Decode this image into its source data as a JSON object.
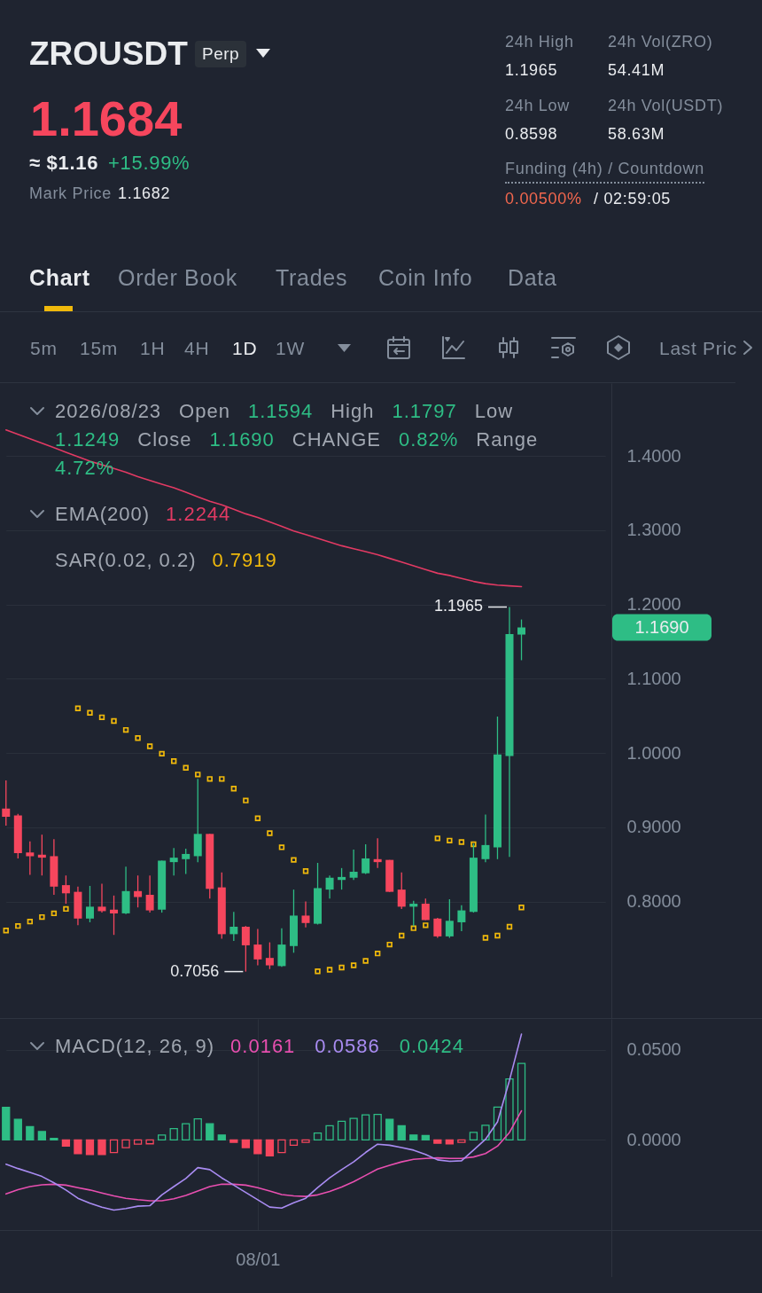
{
  "chart_data": [
    {
      "type": "other",
      "title": "ZROUSDT",
      "annotations": [
        "Perp",
        "1.1684",
        "≈ $1.16",
        "+15.99%",
        "Mark Price",
        "1.1682",
        "24h High",
        "1.1965",
        "24h Low",
        "0.8598",
        "24h Vol(ZRO)",
        "54.41M",
        "24h Vol(USDT)",
        "58.63M",
        "Funding (4h) / Countdown",
        "0.00500%",
        "/ 02:59:05",
        "Chart",
        "Order Book",
        "Trades",
        "Coin Info",
        "Data",
        "5m",
        "15m",
        "1H",
        "4H",
        "1D",
        "1W",
        "Last Pric"
      ]
    },
    {
      "type": "candlestick",
      "categories": [
        null,
        null,
        null,
        null,
        null,
        null,
        null,
        null,
        null,
        null,
        null,
        null,
        null,
        null,
        null,
        null,
        null,
        null,
        null,
        null,
        null,
        null,
        null,
        null,
        null,
        null,
        null,
        null,
        null,
        null,
        null,
        null,
        null,
        null,
        null,
        null,
        null,
        null,
        null,
        null,
        null,
        null,
        null,
        null,
        null,
        null,
        null,
        null,
        null,
        null,
        null
      ],
      "ohlc": [
        [
          0.925,
          0.963,
          0.902,
          0.914
        ],
        [
          0.916,
          0.918,
          0.858,
          0.865
        ],
        [
          0.866,
          0.881,
          0.836,
          0.861
        ],
        [
          0.863,
          0.89,
          0.835,
          0.859
        ],
        [
          0.861,
          0.884,
          0.809,
          0.82
        ],
        [
          0.822,
          0.835,
          0.797,
          0.811
        ],
        [
          0.813,
          0.82,
          0.768,
          0.777
        ],
        [
          0.777,
          0.821,
          0.772,
          0.793
        ],
        [
          0.793,
          0.824,
          0.785,
          0.787
        ],
        [
          0.789,
          0.808,
          0.755,
          0.784
        ],
        [
          0.784,
          0.847,
          0.783,
          0.814
        ],
        [
          0.814,
          0.835,
          0.792,
          0.806
        ],
        [
          0.809,
          0.835,
          0.785,
          0.788
        ],
        [
          0.789,
          0.855,
          0.785,
          0.855
        ],
        [
          0.853,
          0.872,
          0.835,
          0.859
        ],
        [
          0.857,
          0.871,
          0.837,
          0.864
        ],
        [
          0.861,
          0.965,
          0.853,
          0.891
        ],
        [
          0.891,
          0.891,
          0.804,
          0.817
        ],
        [
          0.819,
          0.839,
          0.75,
          0.756
        ],
        [
          0.756,
          0.786,
          0.747,
          0.766
        ],
        [
          0.766,
          0.767,
          0.7056,
          0.741
        ],
        [
          0.742,
          0.763,
          0.714,
          0.722
        ],
        [
          0.724,
          0.745,
          0.709,
          0.714
        ],
        [
          0.713,
          0.764,
          0.712,
          0.742
        ],
        [
          0.74,
          0.816,
          0.731,
          0.781
        ],
        [
          0.781,
          0.8,
          0.765,
          0.771
        ],
        [
          0.77,
          0.852,
          0.769,
          0.818
        ],
        [
          0.816,
          0.835,
          0.804,
          0.832
        ],
        [
          0.829,
          0.845,
          0.816,
          0.833
        ],
        [
          0.832,
          0.87,
          0.829,
          0.84
        ],
        [
          0.838,
          0.877,
          0.837,
          0.858
        ],
        [
          0.857,
          0.885,
          0.845,
          0.853
        ],
        [
          0.856,
          0.856,
          0.813,
          0.813
        ],
        [
          0.816,
          0.839,
          0.79,
          0.793
        ],
        [
          0.793,
          0.801,
          0.767,
          0.797
        ],
        [
          0.797,
          0.804,
          0.775,
          0.775
        ],
        [
          0.777,
          0.778,
          0.751,
          0.753
        ],
        [
          0.753,
          0.803,
          0.751,
          0.774
        ],
        [
          0.772,
          0.795,
          0.76,
          0.788
        ],
        [
          0.786,
          0.878,
          0.785,
          0.859
        ],
        [
          0.857,
          0.917,
          0.853,
          0.876
        ],
        [
          0.873,
          1.049,
          0.857,
          0.998
        ],
        [
          0.996,
          1.1965,
          0.86,
          1.16
        ],
        [
          1.1594,
          1.1797,
          1.1249,
          1.169
        ],
        null,
        null,
        null,
        null,
        null,
        null,
        null
      ],
      "colors": [
        "#f6465d",
        "#f6465d",
        "#f6465d",
        "#f6465d",
        "#f6465d",
        "#f6465d",
        "#f6465d",
        "#2ebd85",
        "#f6465d",
        "#f6465d",
        "#2ebd85",
        "#f6465d",
        "#f6465d",
        "#2ebd85",
        "#2ebd85",
        "#2ebd85",
        "#2ebd85",
        "#f6465d",
        "#f6465d",
        "#2ebd85",
        "#f6465d",
        "#f6465d",
        "#f6465d",
        "#2ebd85",
        "#2ebd85",
        "#f6465d",
        "#2ebd85",
        "#2ebd85",
        "#2ebd85",
        "#2ebd85",
        "#2ebd85",
        "#f6465d",
        "#f6465d",
        "#f6465d",
        "#2ebd85",
        "#f6465d",
        "#f6465d",
        "#2ebd85",
        "#2ebd85",
        "#2ebd85",
        "#2ebd85",
        "#2ebd85",
        "#2ebd85",
        "#2ebd85",
        null,
        null,
        null,
        null,
        null,
        null,
        null
      ],
      "ylim": [
        0.643,
        1.498
      ],
      "yticks": [
        {
          "value": 0.8,
          "label": "0.8000"
        },
        {
          "value": 0.9,
          "label": "0.9000"
        },
        {
          "value": 1.0,
          "label": "1.0000"
        },
        {
          "value": 1.1,
          "label": "1.1000"
        },
        {
          "value": 1.2,
          "label": "1.2000"
        },
        {
          "value": 1.3,
          "label": "1.3000"
        },
        {
          "value": 1.4,
          "label": "1.4000"
        }
      ],
      "grid": "y",
      "tick_labels": "y",
      "series": [
        {
          "type": "line",
          "color": "#e23a63",
          "values": [
            1.435,
            1.429,
            1.423,
            1.417,
            1.411,
            1.405,
            1.399,
            1.393,
            1.388,
            1.383,
            1.378,
            1.372,
            1.367,
            1.362,
            1.357,
            1.351,
            1.345,
            1.339,
            1.334,
            1.328,
            1.322,
            1.317,
            1.311,
            1.305,
            1.299,
            1.294,
            1.289,
            1.284,
            1.279,
            1.275,
            1.271,
            1.267,
            1.262,
            1.257,
            1.252,
            1.247,
            1.242,
            1.239,
            1.235,
            1.231,
            1.228,
            1.226,
            1.225,
            1.224,
            null,
            null,
            null,
            null,
            null,
            null,
            null
          ]
        },
        {
          "type": "scatter",
          "marker": "square",
          "color": "#f0b90b",
          "values": [
            0.761,
            0.767,
            0.773,
            0.779,
            0.784,
            0.79,
            1.06,
            1.054,
            1.048,
            1.043,
            1.031,
            1.02,
            1.009,
            0.999,
            0.989,
            0.98,
            0.971,
            0.965,
            0.965,
            0.952,
            0.936,
            0.912,
            0.892,
            0.873,
            0.856,
            0.841,
            0.706,
            0.708,
            0.711,
            0.714,
            0.72,
            0.73,
            0.742,
            0.754,
            0.764,
            0.768,
            0.885,
            0.882,
            0.88,
            0.877,
            0.751,
            0.754,
            0.766,
            0.792,
            null,
            null,
            null,
            null,
            null,
            null,
            null
          ]
        }
      ],
      "annotations": [
        "1.1965",
        "0.7056",
        "1.1690",
        "2026/08/23",
        "Open",
        "1.1594",
        "High",
        "1.1797",
        "Low",
        "1.1249",
        "Close",
        "1.1690",
        "CHANGE",
        "0.82%",
        "Range",
        "4.72%",
        "EMA(200)",
        "1.2244",
        "SAR(0.02, 0.2)",
        "0.7919"
      ]
    },
    {
      "type": "bar",
      "title": "MACD(12, 26, 9)",
      "categories": [
        null,
        null,
        null,
        null,
        null,
        null,
        null,
        null,
        null,
        null,
        null,
        null,
        null,
        null,
        null,
        null,
        null,
        null,
        null,
        null,
        null,
        "08/01",
        null,
        null,
        null,
        null,
        null,
        null,
        null,
        null,
        null,
        null,
        null,
        null,
        null,
        null,
        null,
        null,
        null,
        null,
        null,
        null,
        null,
        null,
        null,
        null,
        null,
        null,
        null,
        null,
        null
      ],
      "ylim": [
        -0.05,
        0.067
      ],
      "yticks": [
        {
          "value": 0,
          "label": "0.0000"
        },
        {
          "value": 0.05,
          "label": "0.0500"
        }
      ],
      "grid": true,
      "series": [
        {
          "type": "line",
          "color": "#e84fb0",
          "values": [
            -0.03,
            -0.0276,
            -0.0259,
            -0.0249,
            -0.0246,
            -0.0251,
            -0.0265,
            -0.0278,
            -0.0295,
            -0.0311,
            -0.0324,
            -0.0332,
            -0.0338,
            -0.0338,
            -0.0327,
            -0.0308,
            -0.0284,
            -0.0259,
            -0.0246,
            -0.0246,
            -0.0251,
            -0.0265,
            -0.0284,
            -0.0303,
            -0.0311,
            -0.0314,
            -0.0305,
            -0.0286,
            -0.0262,
            -0.0232,
            -0.0197,
            -0.0162,
            -0.0141,
            -0.0122,
            -0.0108,
            -0.0103,
            -0.01,
            -0.0103,
            -0.0103,
            -0.0095,
            -0.0076,
            -0.0035,
            0.0041,
            0.0161,
            null,
            null,
            null,
            null,
            null,
            null,
            null
          ]
        },
        {
          "type": "line",
          "color": "#a98cf2",
          "values": [
            -0.0135,
            -0.0159,
            -0.0181,
            -0.0203,
            -0.0238,
            -0.0278,
            -0.0324,
            -0.0351,
            -0.0373,
            -0.0389,
            -0.0381,
            -0.0368,
            -0.0365,
            -0.0305,
            -0.0259,
            -0.0214,
            -0.0154,
            -0.0165,
            -0.0211,
            -0.0251,
            -0.0292,
            -0.0332,
            -0.0373,
            -0.0378,
            -0.0349,
            -0.0324,
            -0.0265,
            -0.0211,
            -0.0165,
            -0.0122,
            -0.007,
            -0.0024,
            -0.003,
            -0.0043,
            -0.0057,
            -0.0081,
            -0.0111,
            -0.0119,
            -0.0116,
            -0.0057,
            0.0003,
            0.01,
            0.033,
            0.0586,
            null,
            null,
            null,
            null,
            null,
            null,
            null
          ]
        },
        {
          "type": "bar",
          "colors": [
            "#2ebd85",
            "#2ebd85",
            "#2ebd85",
            "#2ebd85",
            "#2ebd85",
            "#f6465d",
            "#f6465d",
            "#f6465d",
            "#f6465d",
            "#f6465d",
            "#f6465d",
            "#f6465d",
            "#f6465d",
            "#2ebd85",
            "#2ebd85",
            "#2ebd85",
            "#2ebd85",
            "#2ebd85",
            "#2ebd85",
            "#f6465d",
            "#f6465d",
            "#f6465d",
            "#f6465d",
            "#f6465d",
            "#f6465d",
            "#f6465d",
            "#2ebd85",
            "#2ebd85",
            "#2ebd85",
            "#2ebd85",
            "#2ebd85",
            "#2ebd85",
            "#2ebd85",
            "#2ebd85",
            "#2ebd85",
            "#2ebd85",
            "#f6465d",
            "#f6465d",
            "#f6465d",
            "#2ebd85",
            "#2ebd85",
            "#2ebd85",
            "#2ebd85",
            "#2ebd85",
            null,
            null,
            null,
            null,
            null,
            null,
            null
          ],
          "values": [
            0.018,
            0.0114,
            0.0073,
            0.0046,
            0.0008,
            -0.0035,
            -0.0076,
            -0.0081,
            -0.0081,
            -0.007,
            -0.0043,
            -0.0024,
            -0.0022,
            0.0027,
            0.0062,
            0.0089,
            0.0116,
            0.0089,
            0.0027,
            -0.0014,
            -0.0043,
            -0.0076,
            -0.0089,
            -0.007,
            -0.003,
            -0.0014,
            0.0038,
            0.0078,
            0.0103,
            0.0119,
            0.0138,
            0.0141,
            0.0114,
            0.0078,
            0.0027,
            0.0024,
            -0.0019,
            -0.0022,
            -0.0014,
            0.0041,
            0.0081,
            0.0181,
            0.0338,
            0.0424,
            null,
            null,
            null,
            null,
            null,
            null,
            null
          ]
        }
      ],
      "annotations": [
        "0.0161",
        "0.0586",
        "0.0424"
      ]
    }
  ]
}
